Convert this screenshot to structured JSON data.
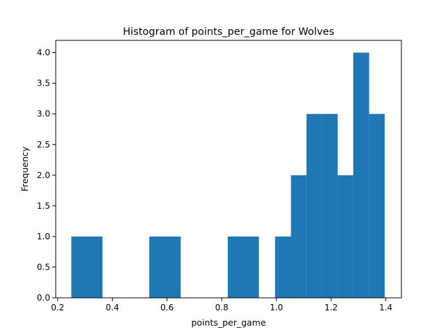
{
  "chart_data": {
    "type": "bar",
    "title": "Histogram of points_per_game for Wolves",
    "xlabel": "points_per_game",
    "ylabel": "Frequency",
    "xlim": [
      0.193,
      1.457
    ],
    "ylim": [
      0,
      4.2
    ],
    "bar_color": "#1f77b4",
    "grid": false,
    "legend": "none",
    "bins": [
      {
        "x0": 0.25,
        "x1": 0.364,
        "count": 1
      },
      {
        "x0": 0.364,
        "x1": 0.478,
        "count": 0
      },
      {
        "x0": 0.478,
        "x1": 0.535,
        "count": 0
      },
      {
        "x0": 0.535,
        "x1": 0.65,
        "count": 1
      },
      {
        "x0": 0.65,
        "x1": 0.822,
        "count": 0
      },
      {
        "x0": 0.822,
        "x1": 0.936,
        "count": 1
      },
      {
        "x0": 0.936,
        "x1": 0.995,
        "count": 0
      },
      {
        "x0": 0.995,
        "x1": 1.053,
        "count": 1
      },
      {
        "x0": 1.053,
        "x1": 1.11,
        "count": 2
      },
      {
        "x0": 1.11,
        "x1": 1.166,
        "count": 3
      },
      {
        "x0": 1.166,
        "x1": 1.224,
        "count": 3
      },
      {
        "x0": 1.224,
        "x1": 1.281,
        "count": 2
      },
      {
        "x0": 1.281,
        "x1": 1.339,
        "count": 4
      },
      {
        "x0": 1.339,
        "x1": 1.396,
        "count": 3
      }
    ],
    "xticks": [
      {
        "value": 0.2,
        "label": "0.2"
      },
      {
        "value": 0.4,
        "label": "0.4"
      },
      {
        "value": 0.6,
        "label": "0.6"
      },
      {
        "value": 0.8,
        "label": "0.8"
      },
      {
        "value": 1.0,
        "label": "1.0"
      },
      {
        "value": 1.2,
        "label": "1.2"
      },
      {
        "value": 1.4,
        "label": "1.4"
      }
    ],
    "yticks": [
      {
        "value": 0.0,
        "label": "0.0"
      },
      {
        "value": 0.5,
        "label": "0.5"
      },
      {
        "value": 1.0,
        "label": "1.0"
      },
      {
        "value": 1.5,
        "label": "1.5"
      },
      {
        "value": 2.0,
        "label": "2.0"
      },
      {
        "value": 2.5,
        "label": "2.5"
      },
      {
        "value": 3.0,
        "label": "3.0"
      },
      {
        "value": 3.5,
        "label": "3.5"
      },
      {
        "value": 4.0,
        "label": "4.0"
      }
    ]
  }
}
